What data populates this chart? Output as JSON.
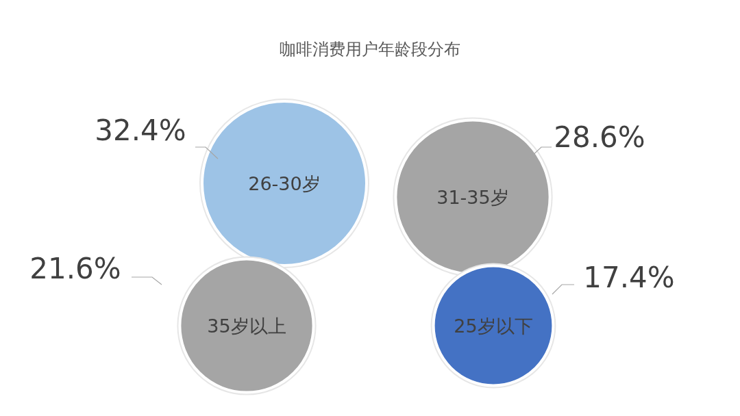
{
  "chart_data": {
    "type": "other",
    "title": "咖啡消费用户年龄段分布",
    "categories": [
      "26-30岁",
      "31-35岁",
      "35岁以上",
      "25岁以下"
    ],
    "values": [
      32.4,
      28.6,
      21.6,
      17.4
    ],
    "value_labels": [
      "32.4%",
      "28.6%",
      "21.6%",
      "17.4%"
    ],
    "colors": [
      "#9dc3e6",
      "#a5a5a5",
      "#a5a5a5",
      "#4472c4"
    ]
  }
}
